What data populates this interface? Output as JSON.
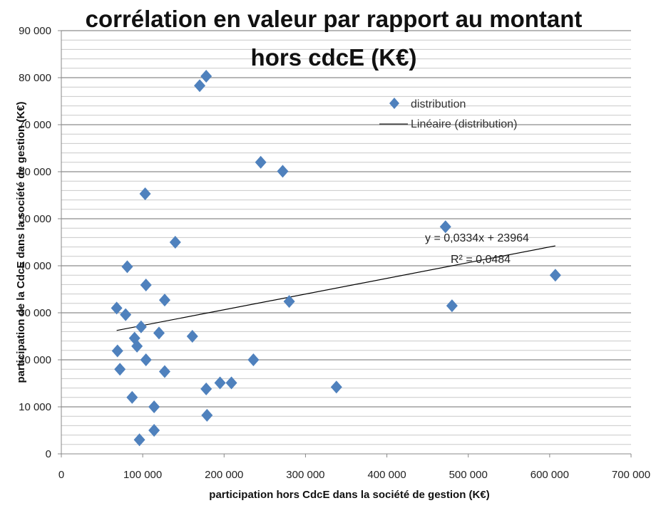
{
  "chart_data": {
    "type": "scatter",
    "title": "corrélation en valeur par rapport au montant",
    "subtitle": "hors cdcE (K€)",
    "xlabel": "participation hors CdcE dans la société de gestion  (K€)",
    "ylabel": "participation de la CdcE dans la société de gestion (K€)",
    "xlim": [
      0,
      700000
    ],
    "ylim": [
      0,
      90000
    ],
    "x_ticks": [
      0,
      100000,
      200000,
      300000,
      400000,
      500000,
      600000,
      700000
    ],
    "y_ticks": [
      0,
      10000,
      20000,
      30000,
      40000,
      50000,
      60000,
      70000,
      80000,
      90000
    ],
    "x_tick_labels": [
      "0",
      "100 000",
      "200 000",
      "300 000",
      "400 000",
      "500 000",
      "600 000",
      "700 000"
    ],
    "y_tick_labels": [
      "0",
      "10 000",
      "20 000",
      "30 000",
      "40 000",
      "50 000",
      "60 000",
      "70 000",
      "80 000",
      "90 000"
    ],
    "grid": "horizontal",
    "legend_position": "top-right",
    "series": [
      {
        "name": "distribution",
        "color": "#4F81BD",
        "marker": "diamond",
        "points": [
          {
            "x": 178000,
            "y": 80300
          },
          {
            "x": 170000,
            "y": 78300
          },
          {
            "x": 245000,
            "y": 62000
          },
          {
            "x": 272000,
            "y": 60100
          },
          {
            "x": 103000,
            "y": 55300
          },
          {
            "x": 472000,
            "y": 48300
          },
          {
            "x": 140000,
            "y": 45000
          },
          {
            "x": 81000,
            "y": 39800
          },
          {
            "x": 607000,
            "y": 38000
          },
          {
            "x": 104000,
            "y": 35900
          },
          {
            "x": 127000,
            "y": 32700
          },
          {
            "x": 280000,
            "y": 32400
          },
          {
            "x": 480000,
            "y": 31500
          },
          {
            "x": 68000,
            "y": 31000
          },
          {
            "x": 79000,
            "y": 29600
          },
          {
            "x": 98000,
            "y": 27000
          },
          {
            "x": 120000,
            "y": 25700
          },
          {
            "x": 161000,
            "y": 25000
          },
          {
            "x": 90000,
            "y": 24600
          },
          {
            "x": 93000,
            "y": 22900
          },
          {
            "x": 69000,
            "y": 21900
          },
          {
            "x": 236000,
            "y": 20000
          },
          {
            "x": 104000,
            "y": 20000
          },
          {
            "x": 72000,
            "y": 18000
          },
          {
            "x": 127000,
            "y": 17500
          },
          {
            "x": 195000,
            "y": 15100
          },
          {
            "x": 209000,
            "y": 15100
          },
          {
            "x": 178000,
            "y": 13800
          },
          {
            "x": 338000,
            "y": 14200
          },
          {
            "x": 87000,
            "y": 12000
          },
          {
            "x": 114000,
            "y": 10000
          },
          {
            "x": 179000,
            "y": 8200
          },
          {
            "x": 114000,
            "y": 5000
          },
          {
            "x": 96000,
            "y": 3000
          }
        ]
      }
    ],
    "trendline": {
      "name": "Linéaire (distribution)",
      "slope": 0.0334,
      "intercept": 23964,
      "x_range": [
        68000,
        607000
      ],
      "equation_label": "y = 0,0334x + 23964",
      "r2_label": "R² = 0,0484",
      "color": "#000000"
    }
  }
}
